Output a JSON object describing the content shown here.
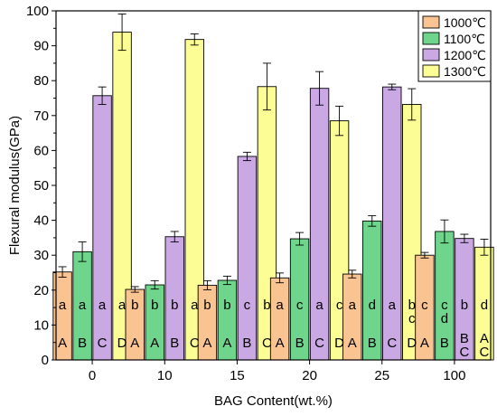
{
  "chart_data": {
    "type": "bar",
    "xlabel": "BAG Content(wt.%)",
    "ylabel": "Flexural modulus(GPa)",
    "ylim": [
      0,
      100
    ],
    "yticks": [
      0,
      10,
      20,
      30,
      40,
      50,
      60,
      70,
      80,
      90,
      100
    ],
    "categories": [
      "0",
      "10",
      "15",
      "20",
      "25",
      "100"
    ],
    "legend_position": "top-right",
    "series": [
      {
        "name": "1000℃",
        "color": "#f9c492",
        "values": [
          25.2,
          20.2,
          21.4,
          23.5,
          24.6,
          30.0
        ],
        "errors": [
          1.5,
          0.8,
          1.3,
          1.4,
          1.1,
          0.8
        ],
        "lower_letters": [
          "a",
          "b",
          "b",
          "a",
          "a",
          "c"
        ],
        "upper_letters": [
          "A",
          "A",
          "A",
          "A",
          "A",
          "A"
        ]
      },
      {
        "name": "1100℃",
        "color": "#6fd58c",
        "values": [
          31.0,
          21.5,
          22.8,
          34.7,
          39.8,
          36.8
        ],
        "errors": [
          2.8,
          1.2,
          1.2,
          1.8,
          1.5,
          3.3
        ],
        "lower_letters": [
          "a",
          "b",
          "b",
          "c",
          "d",
          "c\nd"
        ],
        "upper_letters": [
          "B",
          "A",
          "A",
          "B",
          "B",
          "B"
        ]
      },
      {
        "name": "1200℃",
        "color": "#c9a8e4",
        "values": [
          75.7,
          35.3,
          58.3,
          77.8,
          78.2,
          34.8
        ],
        "errors": [
          2.5,
          1.5,
          1.2,
          4.8,
          0.8,
          1.2
        ],
        "lower_letters": [
          "a",
          "b",
          "c",
          "a",
          "a",
          "b"
        ],
        "upper_letters": [
          "C",
          "B",
          "B",
          "C",
          "C",
          "B\nC"
        ]
      },
      {
        "name": "1300℃",
        "color": "#fdfd96",
        "values": [
          93.9,
          91.8,
          78.3,
          68.5,
          73.2,
          32.3
        ],
        "errors": [
          5.2,
          1.6,
          6.7,
          4.2,
          4.5,
          2.3
        ],
        "lower_letters": [
          "a",
          "a",
          "b",
          "c",
          "b\nc",
          "d"
        ],
        "upper_letters": [
          "D",
          "C",
          "C",
          "D",
          "D",
          "A\nC"
        ]
      }
    ]
  }
}
